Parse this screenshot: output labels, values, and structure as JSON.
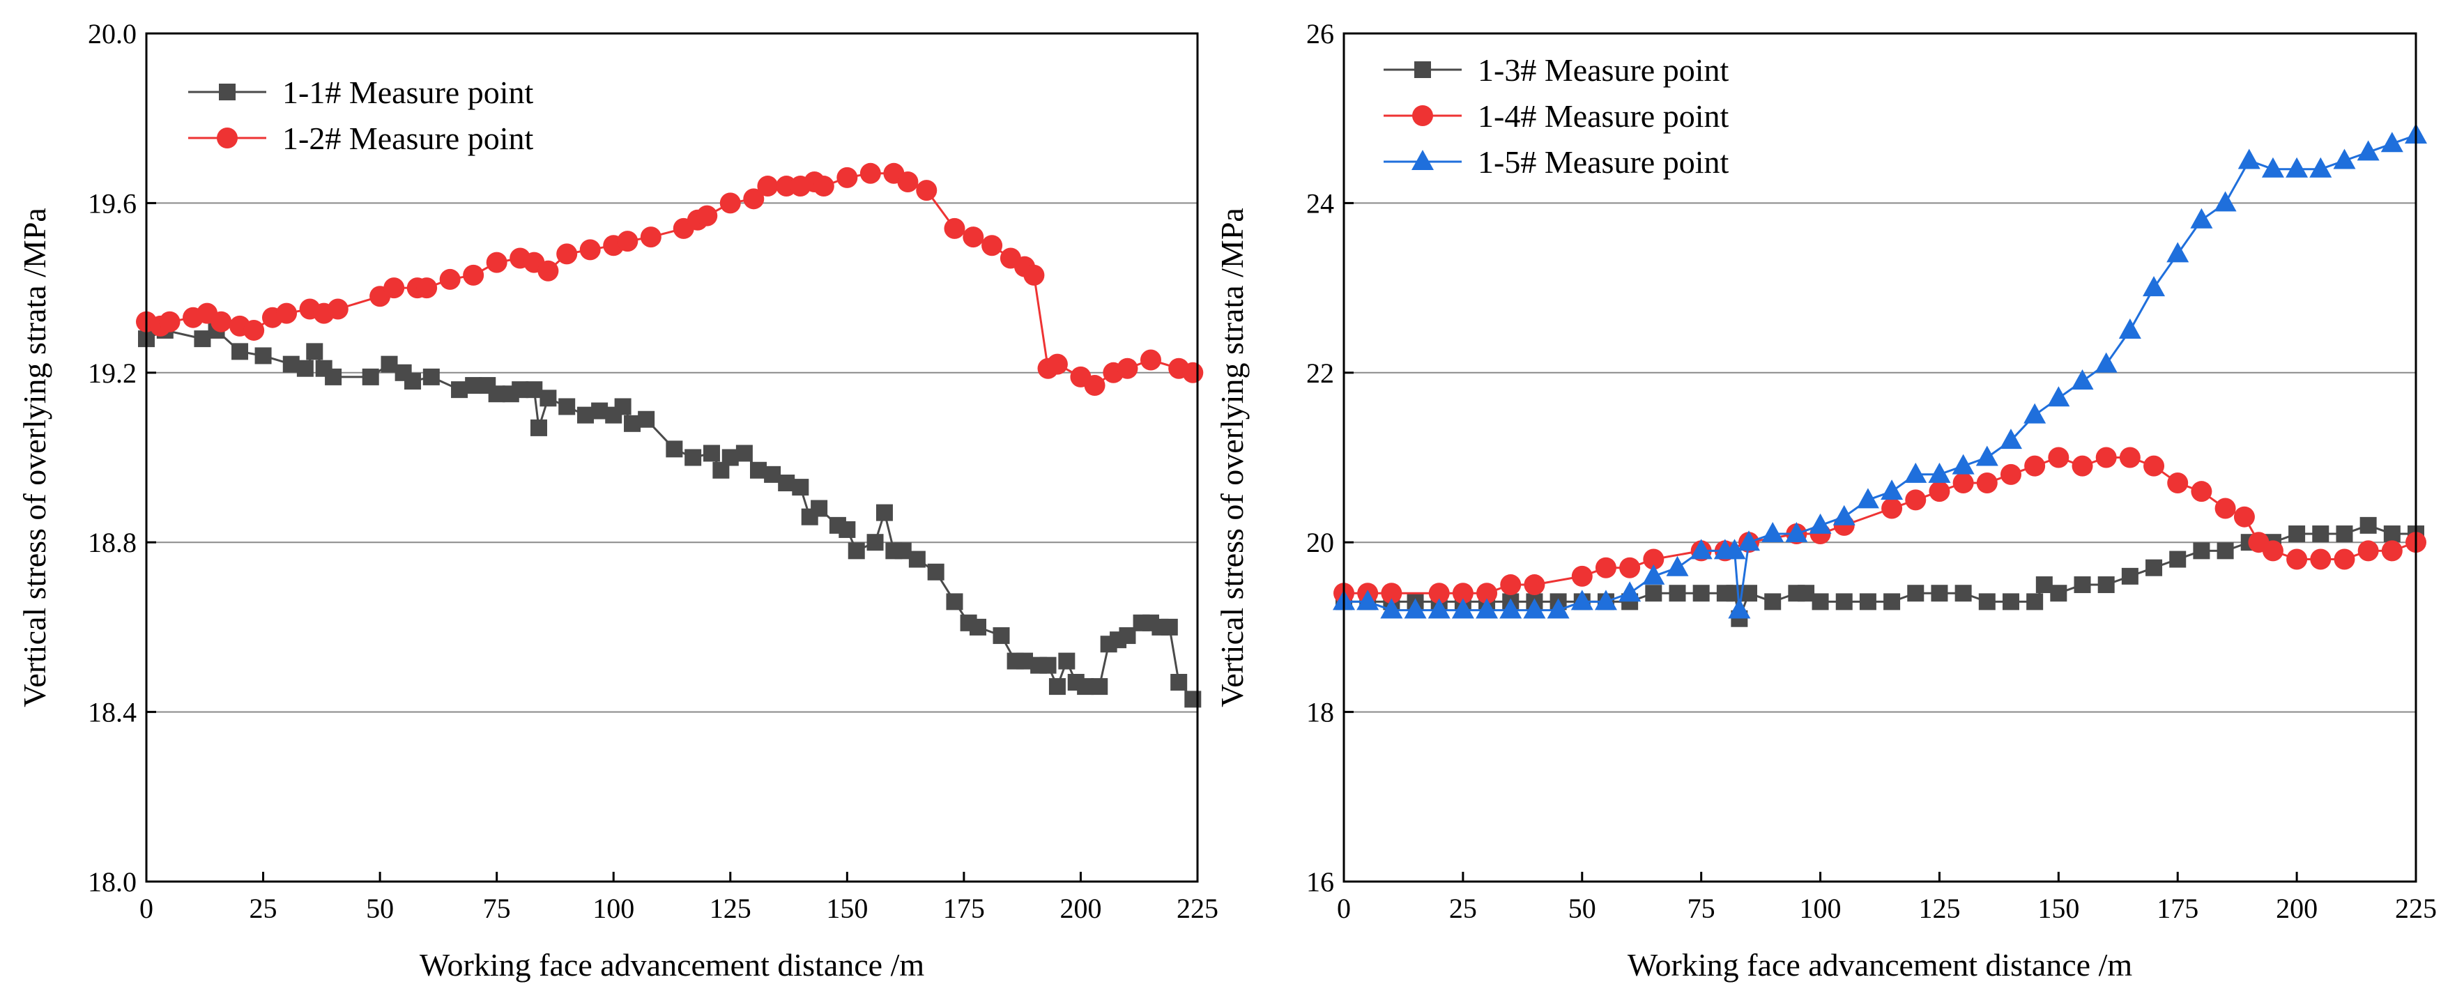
{
  "chart_data": [
    {
      "type": "line",
      "xlabel": "Working face advancement distance /m",
      "ylabel": "Vertical stress of overlying strata /MPa",
      "xlim": [
        0,
        225
      ],
      "ylim": [
        18.0,
        20.0
      ],
      "xticks": [
        "0",
        "25",
        "50",
        "75",
        "100",
        "125",
        "150",
        "175",
        "200",
        "225"
      ],
      "yticks": [
        "18.0",
        "18.4",
        "18.8",
        "19.2",
        "19.6",
        "20.0"
      ],
      "grid": "horizontal",
      "legend": "top-left",
      "series": [
        {
          "name": "1-1# Measure point",
          "color": "#4a4a4a",
          "marker": "square",
          "x": [
            0,
            4,
            12,
            15,
            20,
            25,
            31,
            34,
            36,
            38,
            40,
            48,
            52,
            55,
            57,
            61,
            67,
            70,
            73,
            75,
            78,
            80,
            83,
            84,
            86,
            90,
            94,
            97,
            100,
            102,
            104,
            107,
            113,
            117,
            121,
            123,
            125,
            128,
            131,
            134,
            137,
            140,
            142,
            144,
            148,
            150,
            152,
            156,
            158,
            160,
            162,
            165,
            169,
            173,
            176,
            178,
            183,
            186,
            188,
            191,
            193,
            195,
            197,
            199,
            201,
            204,
            206,
            208,
            210,
            213,
            215,
            217,
            219,
            221,
            224
          ],
          "values": [
            19.28,
            19.3,
            19.28,
            19.3,
            19.25,
            19.24,
            19.22,
            19.21,
            19.25,
            19.21,
            19.19,
            19.19,
            19.22,
            19.2,
            19.18,
            19.19,
            19.16,
            19.17,
            19.17,
            19.15,
            19.15,
            19.16,
            19.16,
            19.07,
            19.14,
            19.12,
            19.1,
            19.11,
            19.1,
            19.12,
            19.08,
            19.09,
            19.02,
            19.0,
            19.01,
            18.97,
            19.0,
            19.01,
            18.97,
            18.96,
            18.94,
            18.93,
            18.86,
            18.88,
            18.84,
            18.83,
            18.78,
            18.8,
            18.87,
            18.78,
            18.78,
            18.76,
            18.73,
            18.66,
            18.61,
            18.6,
            18.58,
            18.52,
            18.52,
            18.51,
            18.51,
            18.46,
            18.52,
            18.47,
            18.46,
            18.46,
            18.56,
            18.57,
            18.58,
            18.61,
            18.61,
            18.6,
            18.6,
            18.47,
            18.43
          ]
        },
        {
          "name": "1-2# Measure point",
          "color": "#ee3333",
          "marker": "circle",
          "x": [
            0,
            3,
            5,
            10,
            13,
            16,
            20,
            23,
            27,
            30,
            35,
            38,
            41,
            50,
            53,
            58,
            60,
            65,
            70,
            75,
            80,
            83,
            86,
            90,
            95,
            100,
            103,
            108,
            115,
            118,
            120,
            125,
            130,
            133,
            137,
            140,
            143,
            145,
            150,
            155,
            160,
            163,
            167,
            173,
            177,
            181,
            185,
            188,
            190,
            193,
            195,
            200,
            203,
            207,
            210,
            215,
            221,
            224
          ],
          "values": [
            19.32,
            19.31,
            19.32,
            19.33,
            19.34,
            19.32,
            19.31,
            19.3,
            19.33,
            19.34,
            19.35,
            19.34,
            19.35,
            19.38,
            19.4,
            19.4,
            19.4,
            19.42,
            19.43,
            19.46,
            19.47,
            19.46,
            19.44,
            19.48,
            19.49,
            19.5,
            19.51,
            19.52,
            19.54,
            19.56,
            19.57,
            19.6,
            19.61,
            19.64,
            19.64,
            19.64,
            19.65,
            19.64,
            19.66,
            19.67,
            19.67,
            19.65,
            19.63,
            19.54,
            19.52,
            19.5,
            19.47,
            19.45,
            19.43,
            19.21,
            19.22,
            19.19,
            19.17,
            19.2,
            19.21,
            19.23,
            19.21,
            19.2
          ]
        }
      ]
    },
    {
      "type": "line",
      "xlabel": "Working face advancement distance /m",
      "ylabel": "Vertical stress of overlying strata /MPa",
      "xlim": [
        0,
        225
      ],
      "ylim": [
        16,
        26
      ],
      "xticks": [
        "0",
        "25",
        "50",
        "75",
        "100",
        "125",
        "150",
        "175",
        "200",
        "225"
      ],
      "yticks": [
        "16",
        "18",
        "20",
        "22",
        "24",
        "26"
      ],
      "grid": "horizontal",
      "legend": "top-left",
      "series": [
        {
          "name": "1-3# Measure point",
          "color": "#4a4a4a",
          "marker": "square",
          "x": [
            0,
            5,
            10,
            15,
            20,
            25,
            30,
            35,
            40,
            45,
            50,
            55,
            60,
            65,
            70,
            75,
            80,
            82,
            83,
            85,
            90,
            95,
            97,
            100,
            105,
            110,
            115,
            120,
            125,
            130,
            135,
            140,
            145,
            147,
            150,
            155,
            160,
            165,
            170,
            175,
            180,
            185,
            190,
            195,
            200,
            205,
            210,
            215,
            220,
            225
          ],
          "values": [
            19.3,
            19.3,
            19.3,
            19.3,
            19.3,
            19.3,
            19.3,
            19.3,
            19.3,
            19.3,
            19.3,
            19.3,
            19.3,
            19.4,
            19.4,
            19.4,
            19.4,
            19.4,
            19.1,
            19.4,
            19.3,
            19.4,
            19.4,
            19.3,
            19.3,
            19.3,
            19.3,
            19.4,
            19.4,
            19.4,
            19.3,
            19.3,
            19.3,
            19.5,
            19.4,
            19.5,
            19.5,
            19.6,
            19.7,
            19.8,
            19.9,
            19.9,
            20.0,
            20.0,
            20.1,
            20.1,
            20.1,
            20.2,
            20.1,
            20.1
          ]
        },
        {
          "name": "1-4# Measure point",
          "color": "#ee3333",
          "marker": "circle",
          "x": [
            0,
            5,
            10,
            20,
            25,
            30,
            35,
            40,
            50,
            55,
            60,
            65,
            75,
            80,
            85,
            95,
            100,
            105,
            115,
            120,
            125,
            130,
            135,
            140,
            145,
            150,
            155,
            160,
            165,
            170,
            175,
            180,
            185,
            189,
            192,
            195,
            200,
            205,
            210,
            215,
            220,
            225
          ],
          "values": [
            19.4,
            19.4,
            19.4,
            19.4,
            19.4,
            19.4,
            19.5,
            19.5,
            19.6,
            19.7,
            19.7,
            19.8,
            19.9,
            19.9,
            20.0,
            20.1,
            20.1,
            20.2,
            20.4,
            20.5,
            20.6,
            20.7,
            20.7,
            20.8,
            20.9,
            21.0,
            20.9,
            21.0,
            21.0,
            20.9,
            20.7,
            20.6,
            20.4,
            20.3,
            20.0,
            19.9,
            19.8,
            19.8,
            19.8,
            19.9,
            19.9,
            20.0
          ]
        },
        {
          "name": "1-5# Measure point",
          "color": "#1f6fdc",
          "marker": "triangle",
          "x": [
            0,
            5,
            10,
            15,
            20,
            25,
            30,
            35,
            40,
            45,
            50,
            55,
            60,
            65,
            70,
            75,
            80,
            82,
            83,
            85,
            90,
            95,
            100,
            105,
            110,
            115,
            120,
            125,
            130,
            135,
            140,
            145,
            150,
            155,
            160,
            165,
            170,
            175,
            180,
            185,
            190,
            195,
            200,
            205,
            210,
            215,
            220,
            225
          ],
          "values": [
            19.3,
            19.3,
            19.2,
            19.2,
            19.2,
            19.2,
            19.2,
            19.2,
            19.2,
            19.2,
            19.3,
            19.3,
            19.4,
            19.6,
            19.7,
            19.9,
            19.9,
            19.9,
            19.2,
            20.0,
            20.1,
            20.1,
            20.2,
            20.3,
            20.5,
            20.6,
            20.8,
            20.8,
            20.9,
            21.0,
            21.2,
            21.5,
            21.7,
            21.9,
            22.1,
            22.5,
            23.0,
            23.4,
            23.8,
            24.0,
            24.5,
            24.4,
            24.4,
            24.4,
            24.5,
            24.6,
            24.7,
            24.8
          ]
        }
      ]
    }
  ]
}
